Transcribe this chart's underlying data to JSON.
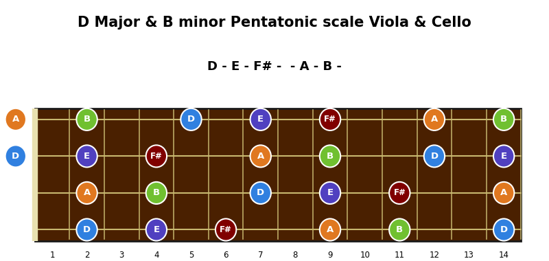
{
  "title": "D Major & B minor Pentatonic scale Viola & Cello",
  "subtitle": "D - E - F# -  - A - B -",
  "fret_max": 14,
  "num_strings": 4,
  "board_color": "#4a2000",
  "fret_line_color": "#c8b870",
  "string_color": "#c8b870",
  "nut_color": "#e8e0b0",
  "notes": [
    {
      "string": 0,
      "fret": 0,
      "note": "A",
      "color": "#e07820"
    },
    {
      "string": 0,
      "fret": 2,
      "note": "B",
      "color": "#70c030"
    },
    {
      "string": 0,
      "fret": 5,
      "note": "D",
      "color": "#3080e0"
    },
    {
      "string": 0,
      "fret": 7,
      "note": "E",
      "color": "#5040c0"
    },
    {
      "string": 0,
      "fret": 9,
      "note": "F#",
      "color": "#800000"
    },
    {
      "string": 0,
      "fret": 12,
      "note": "A",
      "color": "#e07820"
    },
    {
      "string": 0,
      "fret": 14,
      "note": "B",
      "color": "#70c030"
    },
    {
      "string": 1,
      "fret": 0,
      "note": "D",
      "color": "#3080e0"
    },
    {
      "string": 1,
      "fret": 2,
      "note": "E",
      "color": "#5040c0"
    },
    {
      "string": 1,
      "fret": 4,
      "note": "F#",
      "color": "#800000"
    },
    {
      "string": 1,
      "fret": 7,
      "note": "A",
      "color": "#e07820"
    },
    {
      "string": 1,
      "fret": 9,
      "note": "B",
      "color": "#70c030"
    },
    {
      "string": 1,
      "fret": 12,
      "note": "D",
      "color": "#3080e0"
    },
    {
      "string": 1,
      "fret": 14,
      "note": "E",
      "color": "#5040c0"
    },
    {
      "string": 2,
      "fret": 2,
      "note": "A",
      "color": "#e07820"
    },
    {
      "string": 2,
      "fret": 4,
      "note": "B",
      "color": "#70c030"
    },
    {
      "string": 2,
      "fret": 7,
      "note": "D",
      "color": "#3080e0"
    },
    {
      "string": 2,
      "fret": 9,
      "note": "E",
      "color": "#5040c0"
    },
    {
      "string": 2,
      "fret": 11,
      "note": "F#",
      "color": "#800000"
    },
    {
      "string": 2,
      "fret": 14,
      "note": "A",
      "color": "#e07820"
    },
    {
      "string": 3,
      "fret": 2,
      "note": "D",
      "color": "#3080e0"
    },
    {
      "string": 3,
      "fret": 4,
      "note": "E",
      "color": "#5040c0"
    },
    {
      "string": 3,
      "fret": 6,
      "note": "F#",
      "color": "#800000"
    },
    {
      "string": 3,
      "fret": 9,
      "note": "A",
      "color": "#e07820"
    },
    {
      "string": 3,
      "fret": 11,
      "note": "B",
      "color": "#70c030"
    },
    {
      "string": 3,
      "fret": 14,
      "note": "D",
      "color": "#3080e0"
    }
  ]
}
